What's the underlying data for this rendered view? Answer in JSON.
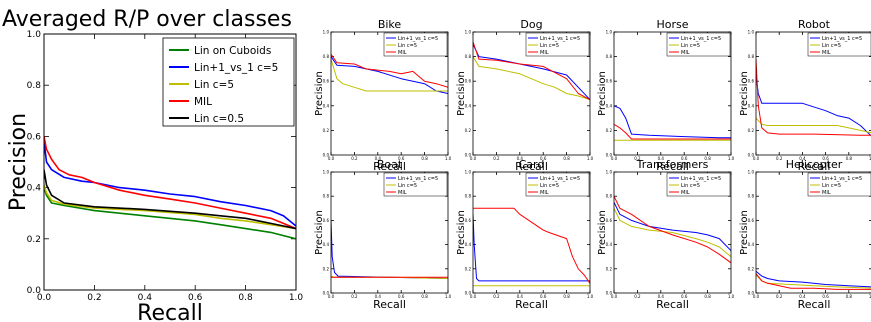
{
  "colors": {
    "green": "#008000",
    "blue": "#0000ff",
    "yellow": "#bfbf00",
    "red": "#ff0000",
    "black": "#000000"
  },
  "chart_data": [
    {
      "type": "line",
      "title": "Averaged R/P over classes",
      "xlabel": "Recall",
      "ylabel": "Precision",
      "xlim": [
        0,
        1
      ],
      "ylim": [
        0,
        1
      ],
      "xticks": [
        "0.0",
        "0.2",
        "0.4",
        "0.6",
        "0.8",
        "1.0"
      ],
      "yticks": [
        "0.0",
        "0.2",
        "0.4",
        "0.6",
        "0.8",
        "1.0"
      ],
      "legend": "top-right",
      "series": [
        {
          "name": "Lin on Cuboids",
          "color": "green",
          "x": [
            0,
            0.01,
            0.03,
            0.08,
            0.2,
            0.4,
            0.6,
            0.7,
            0.8,
            0.9,
            1.0
          ],
          "y": [
            0.4,
            0.37,
            0.34,
            0.33,
            0.31,
            0.29,
            0.27,
            0.255,
            0.24,
            0.225,
            0.2
          ]
        },
        {
          "name": "Lin+1_vs_1 c=5",
          "color": "blue",
          "x": [
            0,
            0.01,
            0.03,
            0.08,
            0.15,
            0.2,
            0.3,
            0.4,
            0.5,
            0.6,
            0.7,
            0.8,
            0.9,
            0.95,
            1.0
          ],
          "y": [
            0.58,
            0.5,
            0.47,
            0.44,
            0.425,
            0.42,
            0.4,
            0.39,
            0.375,
            0.365,
            0.345,
            0.33,
            0.31,
            0.29,
            0.25
          ]
        },
        {
          "name": "Lin c=5",
          "color": "yellow",
          "x": [
            0,
            0.01,
            0.03,
            0.08,
            0.2,
            0.4,
            0.6,
            0.7,
            0.8,
            0.9,
            1.0
          ],
          "y": [
            0.41,
            0.38,
            0.35,
            0.335,
            0.32,
            0.31,
            0.295,
            0.28,
            0.27,
            0.255,
            0.24
          ]
        },
        {
          "name": "MIL",
          "color": "red",
          "x": [
            0,
            0.01,
            0.03,
            0.06,
            0.1,
            0.15,
            0.2,
            0.3,
            0.4,
            0.5,
            0.6,
            0.7,
            0.8,
            0.9,
            0.95,
            1.0
          ],
          "y": [
            0.6,
            0.55,
            0.51,
            0.47,
            0.45,
            0.44,
            0.42,
            0.39,
            0.37,
            0.355,
            0.34,
            0.32,
            0.3,
            0.28,
            0.26,
            0.24
          ]
        },
        {
          "name": "Lin c=0.5",
          "color": "black",
          "x": [
            0,
            0.01,
            0.03,
            0.08,
            0.2,
            0.4,
            0.6,
            0.7,
            0.8,
            0.9,
            1.0
          ],
          "y": [
            0.47,
            0.41,
            0.37,
            0.34,
            0.325,
            0.315,
            0.3,
            0.29,
            0.28,
            0.26,
            0.24
          ]
        }
      ]
    },
    {
      "type": "line",
      "title": "Bike",
      "xlabel": "Recall",
      "ylabel": "Precision",
      "xlim": [
        0,
        1
      ],
      "ylim": [
        0,
        1
      ],
      "legend": "top-right",
      "series": [
        {
          "name": "Lin+1_vs_1 c=5",
          "color": "blue",
          "x": [
            0,
            0.05,
            0.2,
            0.4,
            0.6,
            0.8,
            0.9,
            1.0
          ],
          "y": [
            0.8,
            0.73,
            0.72,
            0.68,
            0.62,
            0.58,
            0.52,
            0.5
          ]
        },
        {
          "name": "Lin c=5",
          "color": "yellow",
          "x": [
            0,
            0.05,
            0.1,
            0.2,
            0.3,
            0.6,
            0.9,
            1.0
          ],
          "y": [
            0.78,
            0.62,
            0.58,
            0.55,
            0.52,
            0.52,
            0.52,
            0.52
          ]
        },
        {
          "name": "MIL",
          "color": "red",
          "x": [
            0,
            0.05,
            0.2,
            0.3,
            0.5,
            0.6,
            0.7,
            0.8,
            0.9,
            1.0
          ],
          "y": [
            0.82,
            0.75,
            0.74,
            0.7,
            0.68,
            0.66,
            0.68,
            0.6,
            0.58,
            0.55
          ]
        }
      ]
    },
    {
      "type": "line",
      "title": "Dog",
      "xlabel": "Recall",
      "ylabel": "Precision",
      "xlim": [
        0,
        1
      ],
      "ylim": [
        0,
        1
      ],
      "legend": "top-right",
      "series": [
        {
          "name": "Lin+1_vs_1 c=5",
          "color": "blue",
          "x": [
            0,
            0.05,
            0.2,
            0.4,
            0.6,
            0.8,
            0.9,
            1.0
          ],
          "y": [
            0.9,
            0.8,
            0.78,
            0.74,
            0.7,
            0.65,
            0.55,
            0.45
          ]
        },
        {
          "name": "Lin c=5",
          "color": "yellow",
          "x": [
            0,
            0.05,
            0.2,
            0.4,
            0.6,
            0.7,
            0.8,
            0.9,
            1.0
          ],
          "y": [
            0.8,
            0.72,
            0.7,
            0.66,
            0.58,
            0.55,
            0.5,
            0.48,
            0.45
          ]
        },
        {
          "name": "MIL",
          "color": "red",
          "x": [
            0,
            0.05,
            0.2,
            0.4,
            0.6,
            0.8,
            0.9,
            1.0
          ],
          "y": [
            0.92,
            0.78,
            0.77,
            0.74,
            0.72,
            0.62,
            0.5,
            0.45
          ]
        }
      ]
    },
    {
      "type": "line",
      "title": "Horse",
      "xlabel": "Recall",
      "ylabel": "Precision",
      "xlim": [
        0,
        1
      ],
      "ylim": [
        0,
        1
      ],
      "legend": "top-right",
      "series": [
        {
          "name": "Lin+1_vs_1 c=5",
          "color": "blue",
          "x": [
            0,
            0.05,
            0.1,
            0.15,
            0.3,
            0.6,
            0.9,
            1.0
          ],
          "y": [
            0.4,
            0.38,
            0.3,
            0.17,
            0.16,
            0.15,
            0.14,
            0.14
          ]
        },
        {
          "name": "Lin c=5",
          "color": "yellow",
          "x": [
            0,
            0.5,
            1.0
          ],
          "y": [
            0.12,
            0.12,
            0.12
          ]
        },
        {
          "name": "MIL",
          "color": "red",
          "x": [
            0,
            0.05,
            0.1,
            0.15,
            0.3,
            0.6,
            1.0
          ],
          "y": [
            0.25,
            0.22,
            0.18,
            0.13,
            0.13,
            0.13,
            0.13
          ]
        }
      ]
    },
    {
      "type": "line",
      "title": "Robot",
      "xlabel": "Recall",
      "ylabel": "Precision",
      "xlim": [
        0,
        1
      ],
      "ylim": [
        0,
        1
      ],
      "legend": "top-right",
      "series": [
        {
          "name": "Lin+1_vs_1 c=5",
          "color": "blue",
          "x": [
            0,
            0.02,
            0.05,
            0.1,
            0.4,
            0.6,
            0.7,
            0.8,
            0.9,
            1.0
          ],
          "y": [
            0.65,
            0.5,
            0.42,
            0.42,
            0.42,
            0.36,
            0.32,
            0.3,
            0.24,
            0.15
          ]
        },
        {
          "name": "Lin c=5",
          "color": "yellow",
          "x": [
            0,
            0.05,
            0.1,
            0.5,
            0.7,
            0.8,
            0.9,
            1.0
          ],
          "y": [
            0.3,
            0.25,
            0.24,
            0.24,
            0.24,
            0.22,
            0.2,
            0.18
          ]
        },
        {
          "name": "MIL",
          "color": "red",
          "x": [
            0,
            0.02,
            0.05,
            0.1,
            0.2,
            0.5,
            0.9,
            1.0
          ],
          "y": [
            0.78,
            0.4,
            0.22,
            0.18,
            0.17,
            0.17,
            0.16,
            0.16
          ]
        }
      ]
    },
    {
      "type": "line",
      "title": "Boat",
      "xlabel": "Recall",
      "ylabel": "Precision",
      "xlim": [
        0,
        1
      ],
      "ylim": [
        0,
        1
      ],
      "legend": "top-right",
      "series": [
        {
          "name": "Lin+1_vs_1 c=5",
          "color": "blue",
          "x": [
            0,
            0.01,
            0.03,
            0.06,
            0.5,
            1.0
          ],
          "y": [
            0.6,
            0.3,
            0.17,
            0.14,
            0.13,
            0.12
          ]
        },
        {
          "name": "Lin c=5",
          "color": "yellow",
          "x": [
            0,
            0.03,
            0.5,
            1.0
          ],
          "y": [
            0.14,
            0.13,
            0.13,
            0.12
          ]
        },
        {
          "name": "MIL",
          "color": "red",
          "x": [
            0,
            0.05,
            0.5,
            1.0
          ],
          "y": [
            0.13,
            0.13,
            0.13,
            0.13
          ]
        }
      ]
    },
    {
      "type": "line",
      "title": "Card",
      "xlabel": "Recall",
      "ylabel": "Precision",
      "xlim": [
        0,
        1
      ],
      "ylim": [
        0,
        1
      ],
      "legend": "top-right",
      "series": [
        {
          "name": "Lin+1_vs_1 c=5",
          "color": "blue",
          "x": [
            0,
            0.01,
            0.03,
            0.05,
            0.5,
            1.0
          ],
          "y": [
            0.65,
            0.4,
            0.12,
            0.1,
            0.1,
            0.1
          ]
        },
        {
          "name": "Lin c=5",
          "color": "yellow",
          "x": [
            0,
            0.5,
            1.0
          ],
          "y": [
            0.06,
            0.06,
            0.06
          ]
        },
        {
          "name": "MIL",
          "color": "red",
          "x": [
            0,
            0.02,
            0.35,
            0.4,
            0.6,
            0.65,
            0.8,
            0.85,
            0.9,
            0.95,
            1.0
          ],
          "y": [
            0.7,
            0.7,
            0.7,
            0.65,
            0.52,
            0.5,
            0.45,
            0.3,
            0.2,
            0.15,
            0.08
          ]
        }
      ]
    },
    {
      "type": "line",
      "title": "Transformers",
      "xlabel": "Recall",
      "ylabel": "Precision",
      "xlim": [
        0,
        1
      ],
      "ylim": [
        0,
        1
      ],
      "legend": "top-right",
      "series": [
        {
          "name": "Lin+1_vs_1 c=5",
          "color": "blue",
          "x": [
            0,
            0.05,
            0.15,
            0.3,
            0.5,
            0.7,
            0.8,
            0.9,
            1.0
          ],
          "y": [
            0.75,
            0.65,
            0.6,
            0.55,
            0.52,
            0.5,
            0.48,
            0.45,
            0.35
          ]
        },
        {
          "name": "Lin c=5",
          "color": "yellow",
          "x": [
            0,
            0.05,
            0.15,
            0.3,
            0.5,
            0.7,
            0.8,
            0.9,
            1.0
          ],
          "y": [
            0.7,
            0.6,
            0.55,
            0.52,
            0.5,
            0.45,
            0.42,
            0.38,
            0.3
          ]
        },
        {
          "name": "MIL",
          "color": "red",
          "x": [
            0,
            0.05,
            0.15,
            0.3,
            0.5,
            0.7,
            0.8,
            0.9,
            1.0
          ],
          "y": [
            0.8,
            0.7,
            0.65,
            0.55,
            0.48,
            0.42,
            0.38,
            0.32,
            0.25
          ]
        }
      ]
    },
    {
      "type": "line",
      "title": "Helicopter",
      "xlabel": "Recall",
      "ylabel": "Precision",
      "xlim": [
        0,
        1
      ],
      "ylim": [
        0,
        1
      ],
      "legend": "top-right",
      "series": [
        {
          "name": "Lin+1_vs_1 c=5",
          "color": "blue",
          "x": [
            0,
            0.05,
            0.1,
            0.2,
            0.4,
            0.6,
            0.8,
            1.0
          ],
          "y": [
            0.18,
            0.14,
            0.12,
            0.1,
            0.09,
            0.07,
            0.06,
            0.05
          ]
        },
        {
          "name": "Lin c=5",
          "color": "yellow",
          "x": [
            0,
            0.05,
            0.1,
            0.3,
            0.5,
            0.7,
            1.0
          ],
          "y": [
            0.15,
            0.1,
            0.08,
            0.07,
            0.06,
            0.05,
            0.04
          ]
        },
        {
          "name": "MIL",
          "color": "red",
          "x": [
            0,
            0.05,
            0.1,
            0.2,
            0.3,
            0.5,
            0.7,
            1.0
          ],
          "y": [
            0.16,
            0.1,
            0.08,
            0.06,
            0.04,
            0.04,
            0.03,
            0.03
          ]
        }
      ]
    }
  ]
}
